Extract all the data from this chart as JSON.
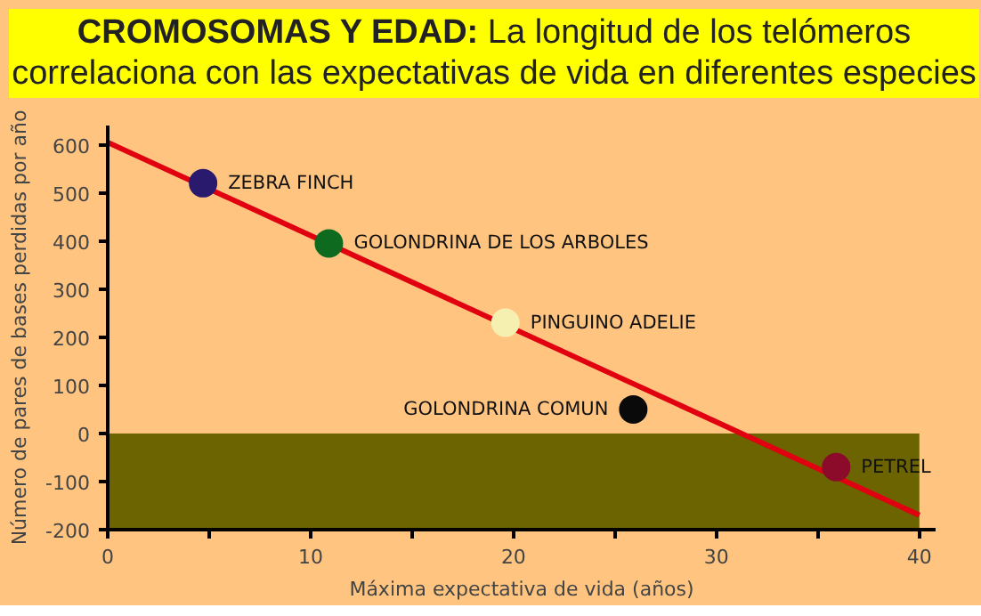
{
  "chart_data": {
    "type": "scatter",
    "title": "CROMOSOMAS Y EDAD:",
    "subtitle": "La longitud de los telómeros correlaciona con las expectativas de vida en diferentes especies",
    "xlabel": "Máxima expectativa de vida (años)",
    "ylabel": "Número de pares de bases perdidas por año",
    "series": [
      {
        "marker": "circle",
        "x": [
          4.7,
          10.9,
          19.6,
          25.9,
          35.9
        ],
        "values": [
          520,
          395,
          230,
          50,
          -70
        ],
        "colors": [
          "#2a1a6e",
          "#0e6a1e",
          "#f5f0b0",
          "#0a0a0a",
          "#8c0a2a"
        ]
      },
      {
        "type": "line",
        "x": [
          0,
          40
        ],
        "values": [
          605,
          -170
        ],
        "color": "#e00010"
      }
    ],
    "annotations": [
      {
        "text": "ZEBRA FINCH",
        "x": 4.7,
        "y": 520
      },
      {
        "text": "GOLONDRINA DE LOS ARBOLES",
        "x": 10.9,
        "y": 395
      },
      {
        "text": "PINGUINO ADELIE",
        "x": 19.6,
        "y": 230
      },
      {
        "text": "GOLONDRINA COMUN",
        "x": 25.9,
        "y": 50
      },
      {
        "text": "PETREL",
        "x": 35.9,
        "y": -70
      }
    ],
    "bands": [
      {
        "axis": "y",
        "from": -200,
        "to": 0,
        "color": "#6b6400"
      }
    ],
    "xlim": [
      0,
      40.8
    ],
    "ylim": [
      -200,
      640
    ],
    "xticks": [
      0,
      {
        "value": 5,
        "label": null
      },
      10,
      {
        "value": 15,
        "label": null
      },
      20,
      {
        "value": 25,
        "label": null
      },
      30,
      {
        "value": 35,
        "label": null
      },
      40
    ],
    "yticks": [
      -200,
      -100,
      0,
      100,
      200,
      300,
      400,
      500,
      600
    ],
    "grid": false
  }
}
